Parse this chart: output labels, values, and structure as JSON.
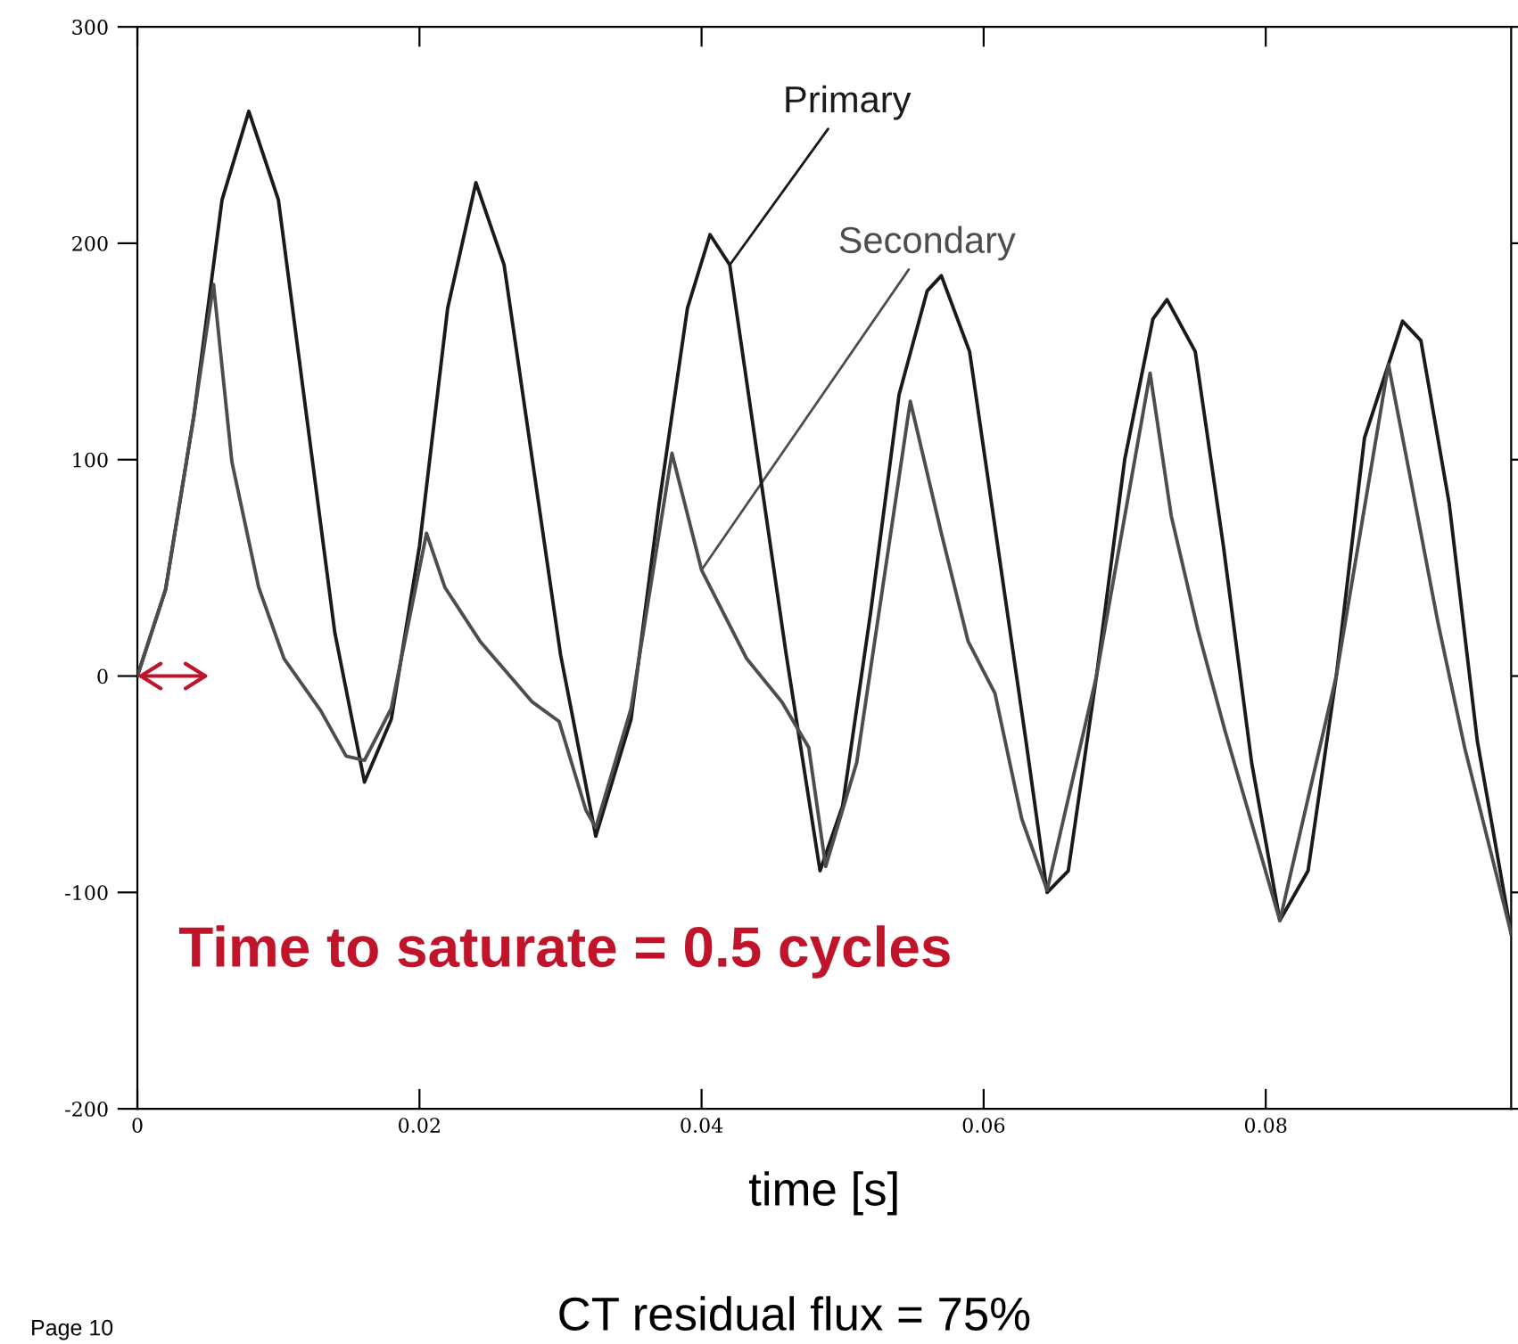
{
  "chart_data": {
    "type": "line",
    "xlabel": "time [s]",
    "xlim": [
      0,
      0.0974
    ],
    "ylim": [
      -200,
      300
    ],
    "xticks": [
      0,
      0.02,
      0.04,
      0.06,
      0.08
    ],
    "yticks": [
      -200,
      -100,
      0,
      100,
      200,
      300
    ],
    "grid": false,
    "legend": false,
    "marker": "none",
    "line_style": "solid",
    "series": [
      {
        "name": "Primary",
        "color": "#1a1a1a",
        "x": [
          0,
          0.002,
          0.004,
          0.006,
          0.0079,
          0.01,
          0.012,
          0.014,
          0.0161,
          0.018,
          0.02,
          0.022,
          0.024,
          0.026,
          0.028,
          0.03,
          0.0325,
          0.035,
          0.037,
          0.039,
          0.0406,
          0.042,
          0.044,
          0.046,
          0.0484,
          0.05,
          0.052,
          0.054,
          0.056,
          0.057,
          0.059,
          0.061,
          0.063,
          0.0645,
          0.066,
          0.068,
          0.07,
          0.072,
          0.073,
          0.075,
          0.077,
          0.079,
          0.081,
          0.083,
          0.085,
          0.087,
          0.0897,
          0.091,
          0.093,
          0.095,
          0.0974
        ],
        "values": [
          0,
          40,
          120,
          220,
          261,
          220,
          120,
          20,
          -49,
          -20,
          60,
          170,
          228,
          190,
          100,
          10,
          -74,
          -20,
          80,
          170,
          204,
          190,
          100,
          10,
          -90,
          -60,
          30,
          130,
          178,
          185,
          150,
          60,
          -30,
          -100,
          -90,
          0,
          100,
          165,
          174,
          150,
          60,
          -40,
          -113,
          -90,
          0,
          110,
          164,
          155,
          80,
          -30,
          -119
        ]
      },
      {
        "name": "Secondary",
        "color": "#4d4d4d",
        "x": [
          0,
          0.002,
          0.004,
          0.0054,
          0.0067,
          0.0086,
          0.0104,
          0.013,
          0.0148,
          0.0161,
          0.018,
          0.0205,
          0.0218,
          0.0243,
          0.028,
          0.0299,
          0.0318,
          0.0325,
          0.035,
          0.0379,
          0.04,
          0.0432,
          0.0457,
          0.0476,
          0.0488,
          0.051,
          0.0548,
          0.057,
          0.0589,
          0.0608,
          0.0627,
          0.0645,
          0.068,
          0.0718,
          0.0733,
          0.0752,
          0.0771,
          0.081,
          0.085,
          0.0887,
          0.0903,
          0.0922,
          0.0941,
          0.0974
        ],
        "values": [
          0,
          40,
          120,
          181,
          99,
          41,
          8,
          -16,
          -37,
          -39,
          -15,
          66,
          41,
          16,
          -12,
          -21,
          -62,
          -70,
          -15,
          103,
          49,
          8,
          -12,
          -33,
          -88,
          -40,
          127,
          66,
          16,
          -8,
          -66,
          -99,
          0,
          140,
          74,
          21,
          -25,
          -113,
          0,
          144,
          90,
          25,
          -33,
          -119
        ]
      }
    ],
    "annotations": [
      "Time to saturate = 0.5 cycles",
      "CT residual flux = 75%",
      "Page 10"
    ]
  }
}
